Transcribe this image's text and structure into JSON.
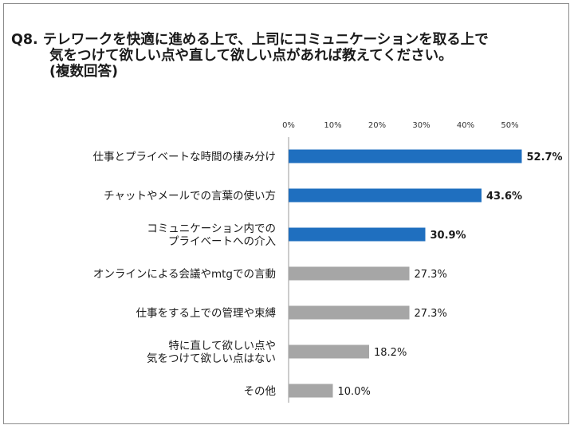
{
  "title_lines": [
    "Q8. テレワークを快適に進める上で、上司にコミュニケーションを取る上で",
    "気をつけて欲しい点や直して欲しい点があれば教えてください。",
    "(複数回答)"
  ],
  "chart_data": {
    "type": "bar",
    "orientation": "horizontal",
    "categories": [
      [
        "仕事とプライベートな時間の棲み分け"
      ],
      [
        "チャットやメールでの言葉の使い方"
      ],
      [
        "コミュニケーション内での",
        "プライベートへの介入"
      ],
      [
        "オンラインによる会議やmtgでの言動"
      ],
      [
        "仕事をする上での管理や束縛"
      ],
      [
        "特に直して欲しい点や",
        "気をつけて欲しい点はない"
      ],
      [
        "その他"
      ]
    ],
    "values": [
      52.7,
      43.6,
      30.9,
      27.3,
      27.3,
      18.2,
      10.0
    ],
    "value_labels": [
      "52.7%",
      "43.6%",
      "30.9%",
      "27.3%",
      "27.3%",
      "18.2%",
      "10.0%"
    ],
    "highlight": [
      true,
      true,
      true,
      false,
      false,
      false,
      false
    ],
    "xlim": [
      0,
      50
    ],
    "x_ticks": [
      "0%",
      "10%",
      "20%",
      "30%",
      "40%",
      "50%"
    ],
    "x_tick_values": [
      0,
      10,
      20,
      30,
      40,
      50
    ],
    "axis_position": "top",
    "grid": false,
    "colors": {
      "highlight": "#1f6fbf",
      "normal": "#a6a6a6",
      "axis": "#999999"
    }
  }
}
